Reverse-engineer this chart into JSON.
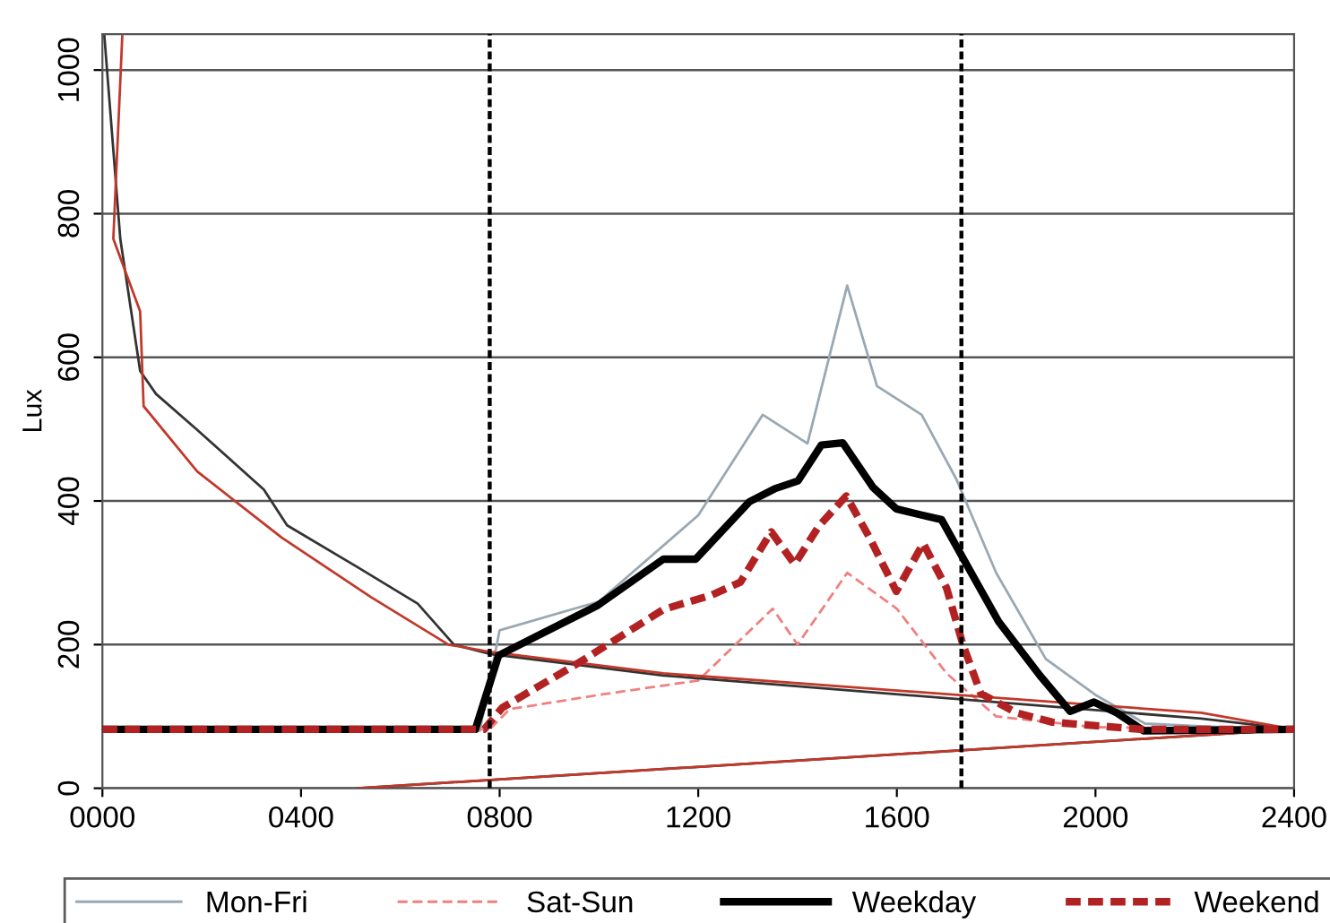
{
  "chart_data": {
    "type": "line",
    "ylabel": "Lux",
    "xlim": [
      0,
      2400
    ],
    "ylim": [
      0,
      1050
    ],
    "xticks": [
      {
        "value": 0,
        "label": "0000"
      },
      {
        "value": 400,
        "label": "0400"
      },
      {
        "value": 800,
        "label": "0800"
      },
      {
        "value": 1200,
        "label": "1200"
      },
      {
        "value": 1600,
        "label": "1600"
      },
      {
        "value": 2000,
        "label": "2000"
      },
      {
        "value": 2400,
        "label": "2400"
      }
    ],
    "yticks": [
      0,
      200,
      400,
      600,
      800,
      1000
    ],
    "grid": "y",
    "legend": "bottom",
    "marker": "none",
    "ref_lines": [
      {
        "axis": "x",
        "value": 780,
        "color": "#000000",
        "line_style": "dotted"
      },
      {
        "axis": "x",
        "value": 1730,
        "color": "#000000",
        "line_style": "dotted"
      }
    ],
    "series": [
      {
        "name": "Mon-Fri",
        "color": "#9aa8b4",
        "line_style": "solid",
        "x": [
          0,
          760,
          800,
          1000,
          1200,
          1330,
          1420,
          1500,
          1560,
          1650,
          1720,
          1800,
          1900,
          2000,
          2100,
          2400
        ],
        "values": [
          80,
          80,
          220,
          260,
          380,
          520,
          480,
          700,
          560,
          520,
          430,
          300,
          180,
          130,
          90,
          80
        ]
      },
      {
        "name": "Sat-Sun",
        "color": "#f08080",
        "line_style": "dashed",
        "x": [
          0,
          780,
          820,
          1000,
          1200,
          1350,
          1400,
          1500,
          1600,
          1700,
          1800,
          2000,
          2400
        ],
        "values": [
          82,
          82,
          110,
          130,
          150,
          250,
          200,
          300,
          250,
          160,
          100,
          85,
          82
        ]
      },
      {
        "color": "#333333",
        "line_style": "solid",
        "x": [
          4,
          36,
          76,
          108,
          191,
          325,
          372,
          516,
          635,
          708,
          780,
          1130,
          2213,
          2400,
          516
        ],
        "values": [
          1047,
          765,
          581,
          549,
          499,
          416,
          366,
          307,
          257,
          200,
          187,
          157,
          97,
          82,
          0
        ]
      },
      {
        "color": "#c0392b",
        "line_style": "solid",
        "x": [
          40,
          22,
          76,
          83,
          191,
          361,
          541,
          697,
          780,
          1130,
          2213,
          2400,
          516
        ],
        "values": [
          1047,
          765,
          664,
          532,
          441,
          349,
          266,
          200,
          190,
          160,
          105,
          82,
          0
        ]
      },
      {
        "name": "Weekday",
        "color": "#000000",
        "line_style": "solid",
        "x": [
          0,
          751,
          798,
          996,
          1130,
          1195,
          1303,
          1354,
          1401,
          1448,
          1491,
          1552,
          1599,
          1646,
          1690,
          1744,
          1805,
          1888,
          1949,
          1997,
          2043,
          2097,
          2400
        ],
        "values": [
          82,
          82,
          185,
          254,
          319,
          319,
          399,
          417,
          428,
          478,
          481,
          419,
          389,
          381,
          374,
          307,
          232,
          157,
          107,
          120,
          105,
          80,
          82
        ]
      },
      {
        "name": "Weekend",
        "color": "#b22222",
        "line_style": "dotted",
        "x": [
          0,
          769,
          805,
          960,
          1130,
          1227,
          1285,
          1347,
          1394,
          1444,
          1498,
          1545,
          1599,
          1653,
          1700,
          1733,
          1769,
          1841,
          1913,
          2094,
          2400
        ],
        "values": [
          82,
          82,
          112,
          175,
          249,
          269,
          287,
          357,
          312,
          366,
          407,
          349,
          274,
          341,
          279,
          200,
          132,
          105,
          92,
          82,
          82
        ]
      }
    ]
  }
}
